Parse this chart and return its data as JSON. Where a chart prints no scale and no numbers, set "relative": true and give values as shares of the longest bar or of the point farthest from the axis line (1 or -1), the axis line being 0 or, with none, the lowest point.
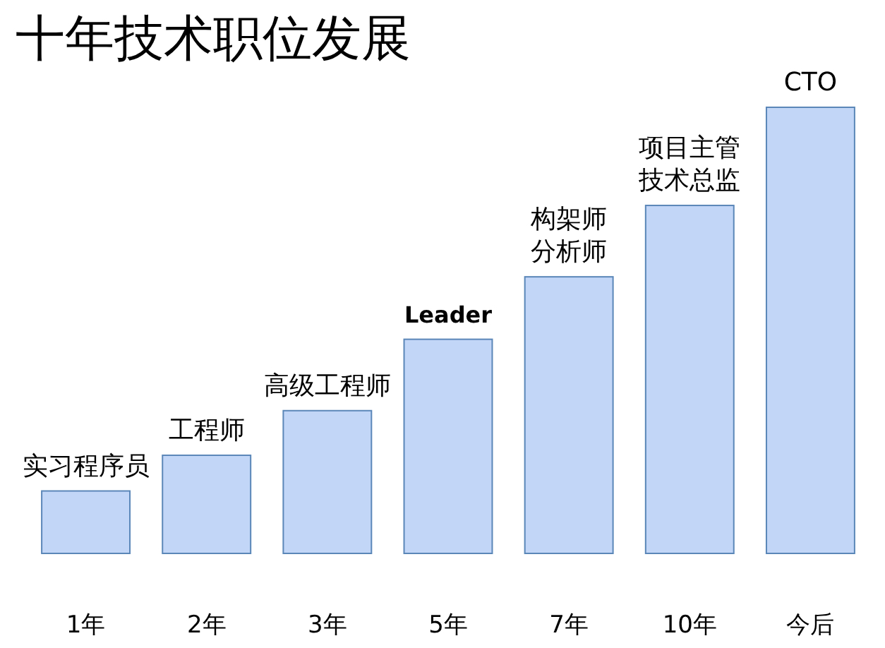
{
  "chart_data": {
    "type": "bar",
    "title": "十年技术职位发展",
    "categories": [
      "1年",
      "2年",
      "3年",
      "5年",
      "7年",
      "10年",
      "今后"
    ],
    "values": [
      0.14,
      0.22,
      0.32,
      0.48,
      0.62,
      0.78,
      1
    ],
    "relative": true,
    "color": "#c2d6f8",
    "annotations": [
      {
        "text": "实习程序员",
        "x": "1年",
        "y": 0.14
      },
      {
        "text": "工程师",
        "x": "2年",
        "y": 0.22
      },
      {
        "text": "高级工程师",
        "x": "3年",
        "y": 0.32
      },
      {
        "text": "Leader",
        "x": "5年",
        "y": 0.48
      },
      {
        "text": "构架师",
        "x": "7年",
        "y": 0.62
      },
      {
        "text": "分析师",
        "x": "7年",
        "y": 0.62
      },
      {
        "text": "项目主管",
        "x": "10年",
        "y": 0.78
      },
      {
        "text": "技术总监",
        "x": "10年",
        "y": 0.78
      },
      {
        "text": "CTO",
        "x": "今后",
        "y": 1
      }
    ]
  }
}
